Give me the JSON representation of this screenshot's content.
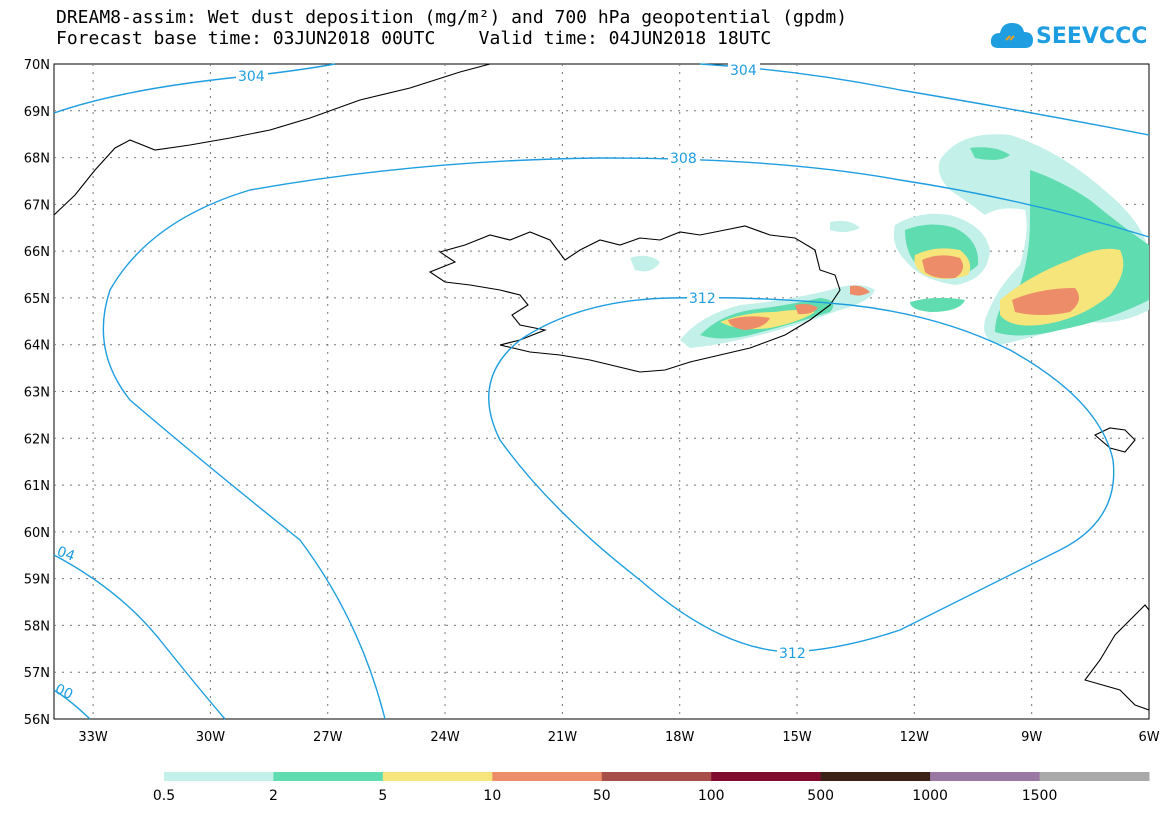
{
  "title": {
    "line1": "DREAM8-assim: Wet dust deposition (mg/m²) and 700 hPa geopotential (gpdm)",
    "line2": "Forecast base time: 03JUN2018 00UTC    Valid time: 04JUN2018 18UTC"
  },
  "logo": {
    "text": "SEEVCCC",
    "icon": "cloud-icon",
    "color": "#1e9ee0"
  },
  "map": {
    "lat_labels": [
      "70N",
      "69N",
      "68N",
      "67N",
      "66N",
      "65N",
      "64N",
      "63N",
      "62N",
      "61N",
      "60N",
      "59N",
      "58N",
      "57N",
      "56N"
    ],
    "lon_labels": [
      "33W",
      "30W",
      "27W",
      "24W",
      "21W",
      "18W",
      "15W",
      "12W",
      "9W",
      "6W"
    ],
    "lon_values": [
      -33,
      -30,
      -27,
      -24,
      -21,
      -18,
      -15,
      -12,
      -9,
      -6
    ],
    "lat_values": [
      70,
      69,
      68,
      67,
      66,
      65,
      64,
      63,
      62,
      61,
      60,
      59,
      58,
      57,
      56
    ],
    "lon_range": [
      -34,
      -6
    ],
    "lat_range": [
      56,
      70
    ],
    "grid": "dotted",
    "contour_color": "#1e9ee0",
    "contour_labels": [
      "304",
      "304",
      "308",
      "312",
      "312",
      "04",
      "00"
    ]
  },
  "colorbar": {
    "labels": [
      "0.5",
      "2",
      "5",
      "10",
      "50",
      "100",
      "500",
      "1000",
      "1500"
    ],
    "colors": [
      "#c4f0ea",
      "#5fdcb0",
      "#f5e57a",
      "#ec8c68",
      "#a84e48",
      "#800b2e",
      "#3b2116",
      "#9a78a4",
      "#a9a9a9"
    ]
  }
}
